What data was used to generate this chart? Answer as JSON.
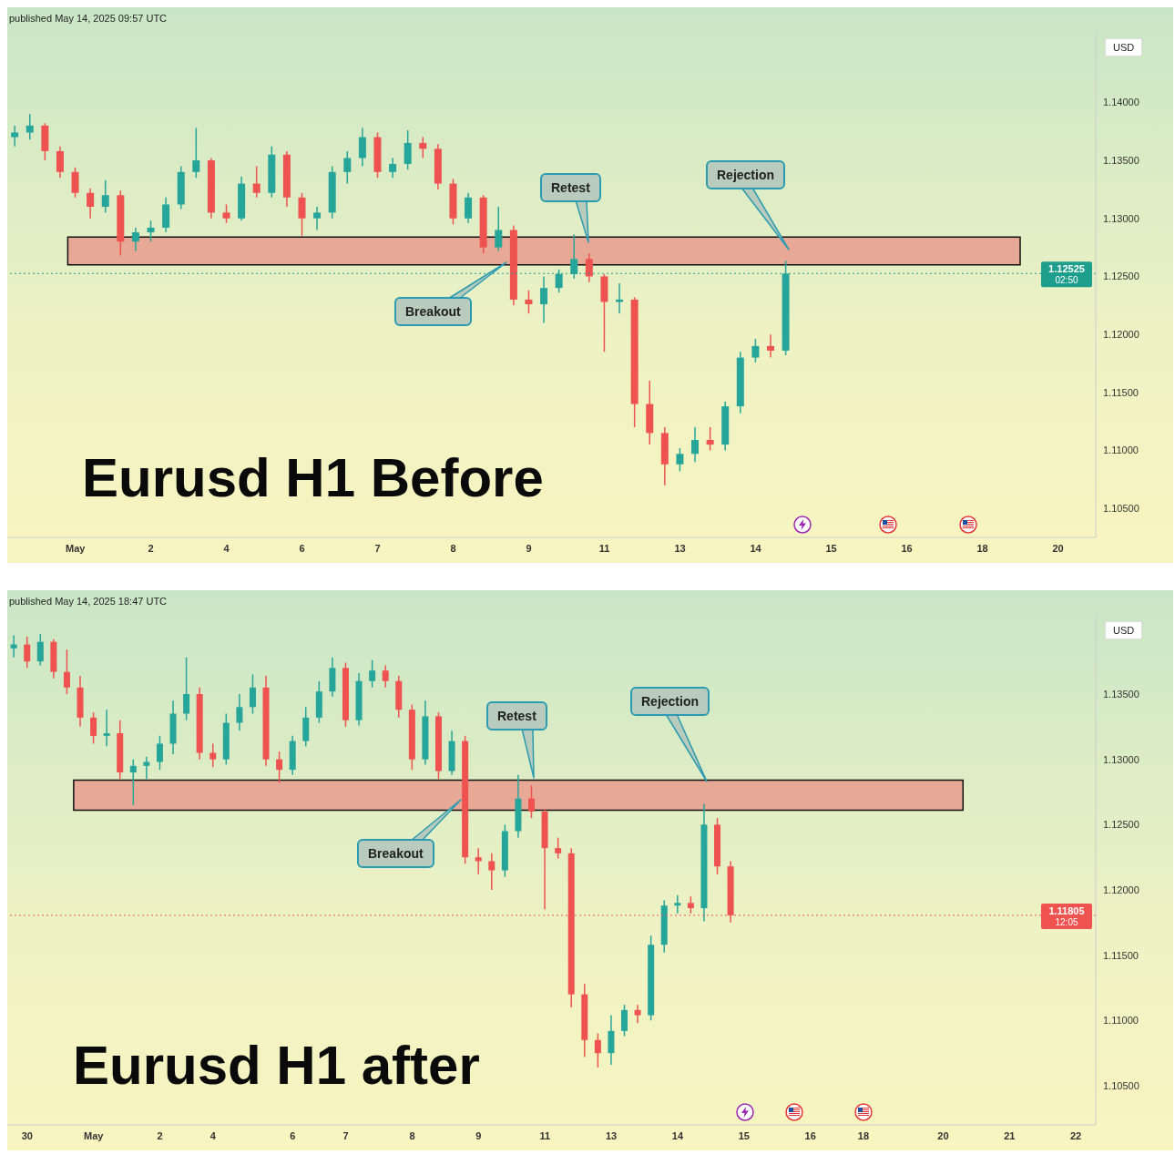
{
  "chart_data": [
    {
      "type": "candlestick",
      "title": "Eurusd H1 Before",
      "subtitle": "published May 14, 2025 09:57 UTC",
      "ylabel": "USD",
      "categories": [
        null,
        null,
        null,
        null,
        "May",
        null,
        null,
        null,
        null,
        "2",
        null,
        null,
        null,
        null,
        "4",
        null,
        null,
        null,
        null,
        "6",
        null,
        null,
        null,
        null,
        "7",
        null,
        null,
        null,
        null,
        "8",
        null,
        null,
        null,
        null,
        "9",
        null,
        null,
        null,
        null,
        "11",
        null,
        null,
        null,
        null,
        "13",
        null,
        null,
        null,
        null,
        "14",
        null,
        null,
        null,
        null,
        "15",
        null,
        null,
        null,
        null,
        "16",
        null,
        null,
        null,
        null,
        "18",
        null,
        null,
        null,
        null,
        "20",
        null,
        null
      ],
      "ohlc": [
        [
          1.137,
          1.138,
          1.1362,
          1.1374
        ],
        [
          1.1374,
          1.139,
          1.1368,
          1.138
        ],
        [
          1.138,
          1.1382,
          1.135,
          1.1358
        ],
        [
          1.1358,
          1.1362,
          1.1335,
          1.134
        ],
        [
          1.134,
          1.1344,
          1.1318,
          1.1322
        ],
        [
          1.1322,
          1.1326,
          1.13,
          1.131
        ],
        [
          1.131,
          1.1333,
          1.1305,
          1.132
        ],
        [
          1.132,
          1.1324,
          1.1268,
          1.128
        ],
        [
          1.128,
          1.1292,
          1.1272,
          1.1288
        ],
        [
          1.1288,
          1.1298,
          1.128,
          1.1292
        ],
        [
          1.1292,
          1.1318,
          1.1288,
          1.1312
        ],
        [
          1.1312,
          1.1345,
          1.1308,
          1.134
        ],
        [
          1.134,
          1.1378,
          1.1335,
          1.135
        ],
        [
          1.135,
          1.1352,
          1.13,
          1.1305
        ],
        [
          1.1305,
          1.1312,
          1.1296,
          1.13
        ],
        [
          1.13,
          1.1336,
          1.1298,
          1.133
        ],
        [
          1.133,
          1.1345,
          1.1318,
          1.1322
        ],
        [
          1.1322,
          1.1362,
          1.1318,
          1.1355
        ],
        [
          1.1355,
          1.1358,
          1.131,
          1.1318
        ],
        [
          1.1318,
          1.1322,
          1.1285,
          1.13
        ],
        [
          1.13,
          1.131,
          1.129,
          1.1305
        ],
        [
          1.1305,
          1.1345,
          1.13,
          1.134
        ],
        [
          1.134,
          1.1358,
          1.133,
          1.1352
        ],
        [
          1.1352,
          1.1378,
          1.1345,
          1.137
        ],
        [
          1.137,
          1.1374,
          1.1335,
          1.134
        ],
        [
          1.134,
          1.1352,
          1.1335,
          1.1347
        ],
        [
          1.1347,
          1.1376,
          1.1342,
          1.1365
        ],
        [
          1.1365,
          1.137,
          1.1352,
          1.136
        ],
        [
          1.136,
          1.1364,
          1.1325,
          1.133
        ],
        [
          1.133,
          1.1334,
          1.1295,
          1.13
        ],
        [
          1.13,
          1.1322,
          1.1296,
          1.1318
        ],
        [
          1.1318,
          1.132,
          1.127,
          1.1275
        ],
        [
          1.1275,
          1.131,
          1.1272,
          1.129
        ],
        [
          1.129,
          1.1294,
          1.1225,
          1.123
        ],
        [
          1.123,
          1.1238,
          1.1218,
          1.1226
        ],
        [
          1.1226,
          1.125,
          1.121,
          1.124
        ],
        [
          1.124,
          1.1256,
          1.1236,
          1.1252
        ],
        [
          1.1252,
          1.1286,
          1.1248,
          1.1265
        ],
        [
          1.1265,
          1.127,
          1.1245,
          1.125
        ],
        [
          1.125,
          1.1252,
          1.1185,
          1.1228
        ],
        [
          1.1228,
          1.1244,
          1.1218,
          1.123
        ],
        [
          1.123,
          1.1232,
          1.112,
          1.114
        ],
        [
          1.114,
          1.116,
          1.1105,
          1.1115
        ],
        [
          1.1115,
          1.112,
          1.107,
          1.1088
        ],
        [
          1.1088,
          1.1102,
          1.1082,
          1.1097
        ],
        [
          1.1097,
          1.112,
          1.109,
          1.1109
        ],
        [
          1.1109,
          1.112,
          1.11,
          1.1105
        ],
        [
          1.1105,
          1.1142,
          1.11,
          1.1138
        ],
        [
          1.1138,
          1.1185,
          1.1132,
          1.118
        ],
        [
          1.118,
          1.1196,
          1.1176,
          1.119
        ],
        [
          1.119,
          1.12,
          1.118,
          1.1186
        ],
        [
          1.1186,
          1.12635,
          1.1182,
          1.12525
        ],
        null,
        null,
        null,
        null,
        null,
        null,
        null,
        null,
        null,
        null,
        null,
        null,
        null,
        null,
        null,
        null,
        null,
        null,
        null,
        null
      ],
      "ylim": [
        1.1025,
        1.146
      ],
      "yticks": [
        {
          "value": 1.105,
          "label": "1.10500"
        },
        {
          "value": 1.11,
          "label": "1.11000"
        },
        {
          "value": 1.115,
          "label": "1.11500"
        },
        {
          "value": 1.12,
          "label": "1.12000"
        },
        {
          "value": 1.125,
          "label": "1.12500"
        },
        {
          "value": 1.13,
          "label": "1.13000"
        },
        {
          "value": 1.135,
          "label": "1.13500"
        },
        {
          "value": 1.14,
          "label": "1.14000"
        }
      ],
      "bands": [
        {
          "axis": "y",
          "from": 1.126,
          "to": 1.1284,
          "color": "#e8a896"
        }
      ],
      "ref_lines": [
        {
          "axis": "y",
          "value": 1.12525,
          "label": "1.12525",
          "color": "#1e9e8c",
          "line_style": "dotted"
        }
      ],
      "annotations": [
        "Retest",
        "Breakout",
        "Rejection",
        "02:50"
      ]
    },
    {
      "type": "candlestick",
      "title": "Eurusd H1 after",
      "subtitle": "published May 14, 2025 18:47 UTC",
      "ylabel": "USD",
      "categories": [
        null,
        "30",
        null,
        null,
        null,
        null,
        "May",
        null,
        null,
        null,
        null,
        "2",
        null,
        null,
        null,
        "4",
        null,
        null,
        null,
        null,
        null,
        "6",
        null,
        null,
        null,
        "7",
        null,
        null,
        null,
        null,
        "8",
        null,
        null,
        null,
        null,
        "9",
        null,
        null,
        null,
        null,
        "11",
        null,
        null,
        null,
        null,
        "13",
        null,
        null,
        null,
        null,
        "14",
        null,
        null,
        null,
        null,
        "15",
        null,
        null,
        null,
        null,
        "16",
        null,
        null,
        null,
        "18",
        null,
        null,
        null,
        null,
        null,
        "20",
        null,
        null,
        null,
        null,
        "21",
        null,
        null,
        null,
        null,
        "22",
        null
      ],
      "ohlc": [
        [
          1.1385,
          1.1395,
          1.1378,
          1.1388
        ],
        [
          1.1388,
          1.1394,
          1.137,
          1.1375
        ],
        [
          1.1375,
          1.1396,
          1.1372,
          1.139
        ],
        [
          1.139,
          1.1392,
          1.1362,
          1.1367
        ],
        [
          1.1367,
          1.1384,
          1.135,
          1.1355
        ],
        [
          1.1355,
          1.1364,
          1.1325,
          1.1332
        ],
        [
          1.1332,
          1.1336,
          1.1312,
          1.1318
        ],
        [
          1.1318,
          1.1338,
          1.131,
          1.132
        ],
        [
          1.132,
          1.133,
          1.1285,
          1.129
        ],
        [
          1.129,
          1.13,
          1.1265,
          1.1295
        ],
        [
          1.1295,
          1.1302,
          1.1285,
          1.1298
        ],
        [
          1.1298,
          1.1318,
          1.1292,
          1.1312
        ],
        [
          1.1312,
          1.1345,
          1.1304,
          1.1335
        ],
        [
          1.1335,
          1.1378,
          1.133,
          1.135
        ],
        [
          1.135,
          1.1355,
          1.13,
          1.1305
        ],
        [
          1.1305,
          1.1312,
          1.1294,
          1.13
        ],
        [
          1.13,
          1.1335,
          1.1296,
          1.1328
        ],
        [
          1.1328,
          1.135,
          1.1322,
          1.134
        ],
        [
          1.134,
          1.1365,
          1.1335,
          1.1355
        ],
        [
          1.1355,
          1.1364,
          1.1295,
          1.13
        ],
        [
          1.13,
          1.1306,
          1.1282,
          1.1292
        ],
        [
          1.1292,
          1.1318,
          1.1288,
          1.1314
        ],
        [
          1.1314,
          1.134,
          1.131,
          1.1332
        ],
        [
          1.1332,
          1.136,
          1.1328,
          1.1352
        ],
        [
          1.1352,
          1.1378,
          1.1348,
          1.137
        ],
        [
          1.137,
          1.1374,
          1.1325,
          1.133
        ],
        [
          1.133,
          1.1366,
          1.1326,
          1.136
        ],
        [
          1.136,
          1.1376,
          1.1355,
          1.1368
        ],
        [
          1.1368,
          1.1372,
          1.1355,
          1.136
        ],
        [
          1.136,
          1.1364,
          1.1332,
          1.1338
        ],
        [
          1.1338,
          1.1342,
          1.1292,
          1.13
        ],
        [
          1.13,
          1.1345,
          1.1296,
          1.1333
        ],
        [
          1.1333,
          1.1336,
          1.1285,
          1.1291
        ],
        [
          1.1291,
          1.1322,
          1.1288,
          1.1314
        ],
        [
          1.1314,
          1.1318,
          1.122,
          1.1225
        ],
        [
          1.1225,
          1.1232,
          1.1212,
          1.1222
        ],
        [
          1.1222,
          1.1228,
          1.12,
          1.1215
        ],
        [
          1.1215,
          1.125,
          1.121,
          1.1245
        ],
        [
          1.1245,
          1.1288,
          1.124,
          1.127
        ],
        [
          1.127,
          1.128,
          1.1255,
          1.126
        ],
        [
          1.126,
          1.1262,
          1.1185,
          1.1232
        ],
        [
          1.1232,
          1.124,
          1.1224,
          1.1228
        ],
        [
          1.1228,
          1.1232,
          1.111,
          1.112
        ],
        [
          1.112,
          1.1128,
          1.1072,
          1.1085
        ],
        [
          1.1085,
          1.109,
          1.1064,
          1.1075
        ],
        [
          1.1075,
          1.1104,
          1.1066,
          1.1092
        ],
        [
          1.1092,
          1.1112,
          1.1088,
          1.1108
        ],
        [
          1.1108,
          1.1112,
          1.1098,
          1.1104
        ],
        [
          1.1104,
          1.1165,
          1.11,
          1.1158
        ],
        [
          1.1158,
          1.1192,
          1.1152,
          1.1188
        ],
        [
          1.1188,
          1.1196,
          1.1182,
          1.119
        ],
        [
          1.119,
          1.1195,
          1.1182,
          1.1186
        ],
        [
          1.1186,
          1.1266,
          1.1176,
          1.125
        ],
        [
          1.125,
          1.1255,
          1.1212,
          1.1218
        ],
        [
          1.1218,
          1.1222,
          1.1175,
          1.11805
        ],
        null,
        null,
        null,
        null,
        null,
        null,
        null,
        null,
        null,
        null,
        null,
        null,
        null,
        null,
        null,
        null,
        null,
        null,
        null,
        null,
        null,
        null,
        null,
        null,
        null,
        null,
        null
      ],
      "ylim": [
        1.102,
        1.141
      ],
      "yticks": [
        {
          "value": 1.105,
          "label": "1.10500"
        },
        {
          "value": 1.11,
          "label": "1.11000"
        },
        {
          "value": 1.115,
          "label": "1.11500"
        },
        {
          "value": 1.12,
          "label": "1.12000"
        },
        {
          "value": 1.125,
          "label": "1.12500"
        },
        {
          "value": 1.13,
          "label": "1.13000"
        },
        {
          "value": 1.135,
          "label": "1.13500"
        }
      ],
      "bands": [
        {
          "axis": "y",
          "from": 1.1261,
          "to": 1.1284,
          "color": "#e8a896"
        }
      ],
      "ref_lines": [
        {
          "axis": "y",
          "value": 1.11805,
          "label": "1.11805",
          "color": "#ef5350",
          "line_style": "dotted"
        }
      ],
      "annotations": [
        "Retest",
        "Breakout",
        "Rejection",
        "12:05"
      ]
    }
  ]
}
